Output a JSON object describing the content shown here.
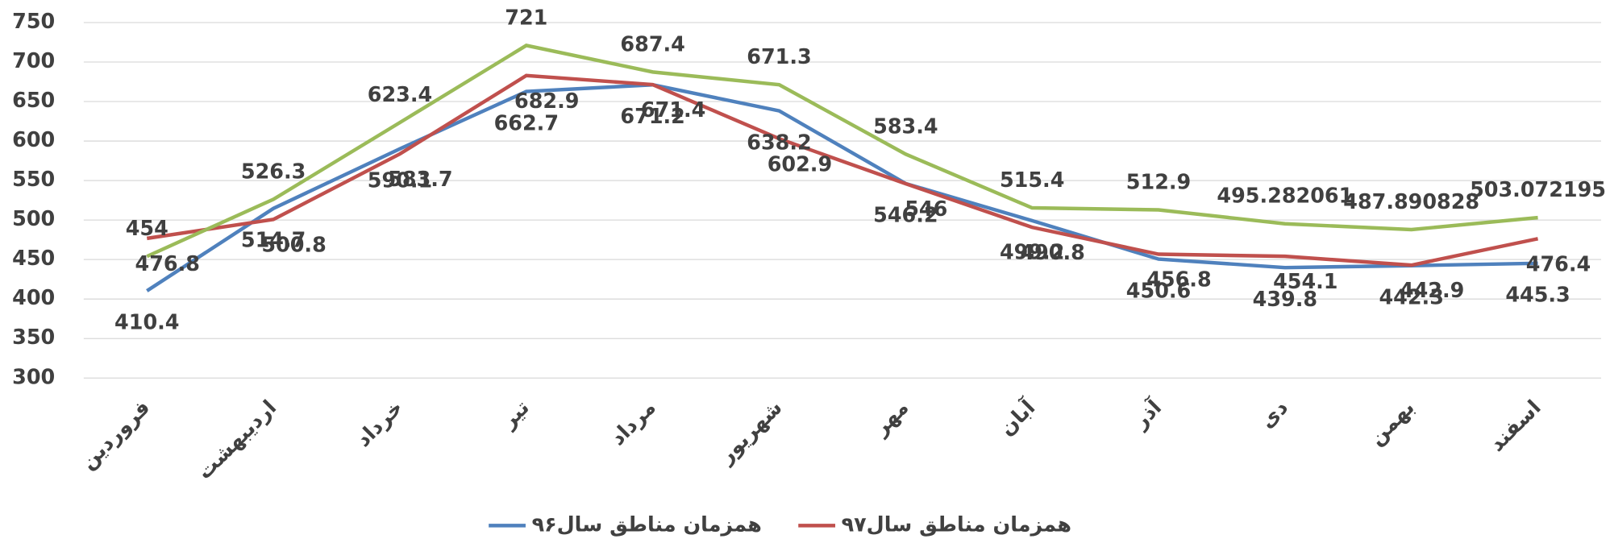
{
  "chart_data": {
    "type": "line",
    "categories": [
      "فروردین",
      "اردیبهشت",
      "خرداد",
      "تیر",
      "مرداد",
      "شهریور",
      "مهر",
      "آبان",
      "آذر",
      "دی",
      "بهمن",
      "اسفند"
    ],
    "series": [
      {
        "name": "همزمان مناطق سال۹۶",
        "color": "#4f81bd",
        "values": [
          410.4,
          514.7,
          590.1,
          662.7,
          671.2,
          638.2,
          546.2,
          499.2,
          450.6,
          439.8,
          442.3,
          445.3
        ]
      },
      {
        "name": "همزمان مناطق سال۹۷",
        "color": "#c0504d",
        "values": [
          476.8,
          500.8,
          583.7,
          682.9,
          671.4,
          602.9,
          546,
          490.8,
          456.8,
          454.1,
          442.9,
          476.4
        ]
      },
      {
        "color": "#9bbb59",
        "values": [
          454,
          526.3,
          623.4,
          721,
          687.4,
          671.3,
          583.4,
          515.4,
          512.9,
          495.282061,
          487.890828,
          503.072195
        ]
      }
    ],
    "ylim": [
      300,
      750
    ],
    "yticks": [
      300,
      350,
      400,
      450,
      500,
      550,
      600,
      650,
      700,
      750
    ],
    "grid": true
  }
}
